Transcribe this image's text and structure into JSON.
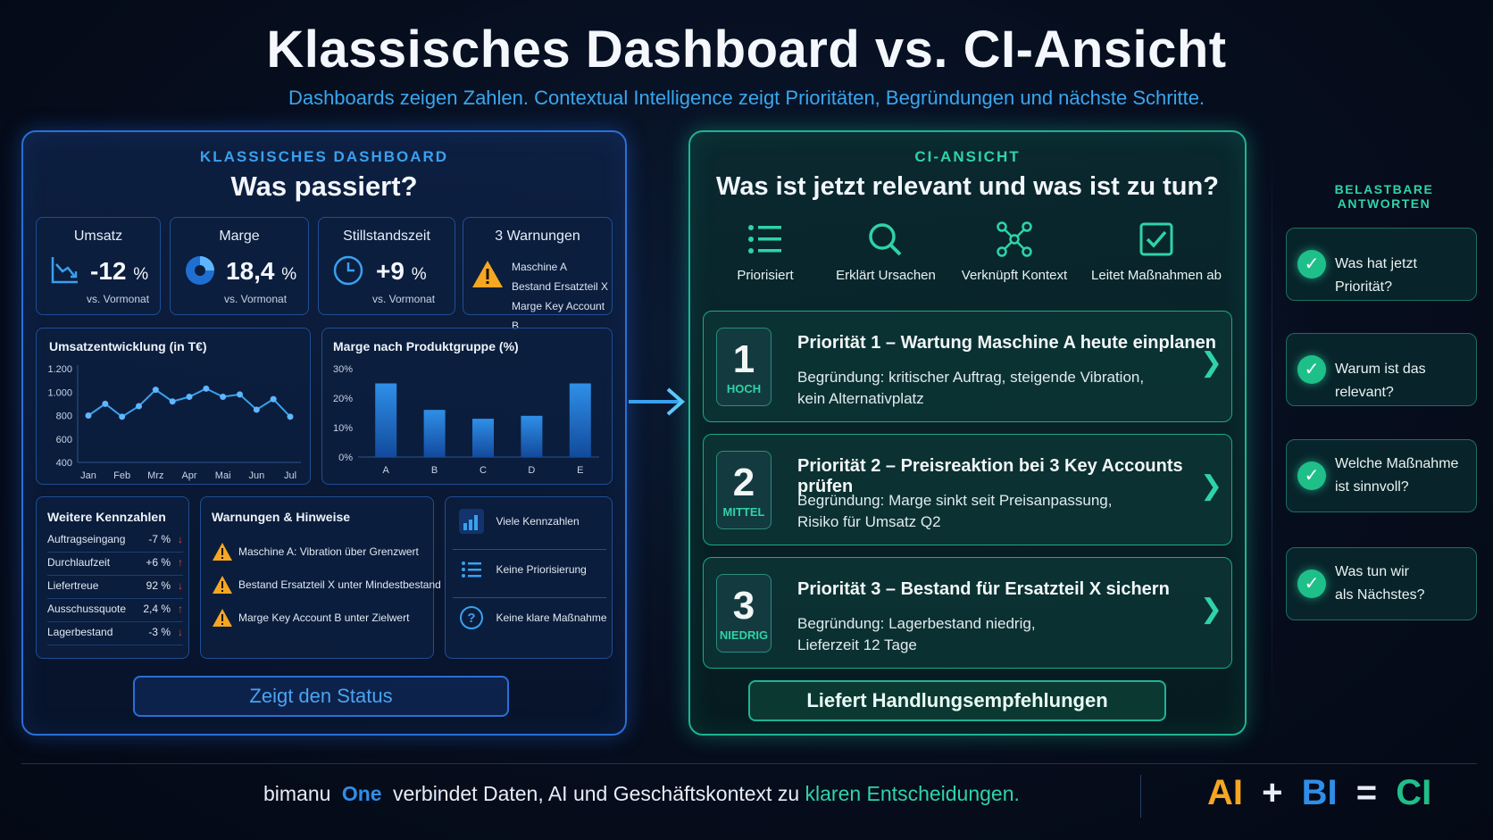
{
  "header": {
    "title": "Klassisches Dashboard vs. CI-Ansicht",
    "subtitle": "Dashboards zeigen Zahlen. Contextual Intelligence zeigt Prioritäten, Begründungen und nächste Schritte."
  },
  "left": {
    "eyebrow": "KLASSISCHES DASHBOARD",
    "heading": "Was passiert?",
    "kpis": [
      {
        "title": "Umsatz",
        "value": "-12",
        "unit": "%",
        "sub": "vs. Vormonat",
        "icon": "trend-down-icon"
      },
      {
        "title": "Marge",
        "value": "18,4",
        "unit": "%",
        "sub": "vs. Vormonat",
        "icon": "pie-icon"
      },
      {
        "title": "Stillstandszeit",
        "value": "+9",
        "unit": "%",
        "sub": "vs. Vormonat",
        "icon": "clock-icon"
      }
    ],
    "warnings_kpi": {
      "title": "3 Warnungen",
      "items": [
        "Maschine A",
        "Bestand Ersatzteil X",
        "Marge Key Account B"
      ]
    },
    "line_chart_title": "Umsatzentwicklung (in T€)",
    "bar_chart_title": "Marge nach Produktgruppe (%)",
    "more_kpis": {
      "title": "Weitere Kennzahlen",
      "rows": [
        {
          "label": "Auftragseingang",
          "value": "-7 %",
          "dir": "down"
        },
        {
          "label": "Durchlaufzeit",
          "value": "+6 %",
          "dir": "up"
        },
        {
          "label": "Liefertreue",
          "value": "92 %",
          "dir": "down"
        },
        {
          "label": "Ausschussquote",
          "value": "2,4 %",
          "dir": "up"
        },
        {
          "label": "Lagerbestand",
          "value": "-3 %",
          "dir": "down"
        }
      ]
    },
    "hints": {
      "title": "Warnungen & Hinweise",
      "items": [
        "Maschine A: Vibration über Grenzwert",
        "Bestand Ersatzteil X unter Mindestbestand",
        "Marge Key Account B unter Zielwert"
      ]
    },
    "issues": [
      "Viele Kennzahlen",
      "Keine Priorisierung",
      "Keine klare Maßnahme"
    ],
    "button": "Zeigt den Status"
  },
  "right": {
    "eyebrow": "CI-ANSICHT",
    "heading": "Was ist jetzt relevant und was ist zu tun?",
    "features": [
      "Priorisiert",
      "Erklärt Ursachen",
      "Verknüpft Kontext",
      "Leitet Maßnahmen ab"
    ],
    "priorities": [
      {
        "num": "1",
        "level": "HOCH",
        "title": "Priorität 1 – Wartung Maschine A heute einplanen",
        "line1": "Begründung: kritischer Auftrag, steigende Vibration,",
        "line2": "kein Alternativplatz"
      },
      {
        "num": "2",
        "level": "MITTEL",
        "title": "Priorität 2 – Preisreaktion bei 3 Key Accounts prüfen",
        "line1": "Begründung: Marge sinkt seit Preisanpassung,",
        "line2": "Risiko für Umsatz Q2"
      },
      {
        "num": "3",
        "level": "NIEDRIG",
        "title": "Priorität 3 – Bestand für Ersatzteil X sichern",
        "line1": "Begründung: Lagerbestand niedrig,",
        "line2": "Lieferzeit 12 Tage"
      }
    ],
    "button": "Liefert Handlungsempfehlungen"
  },
  "answers": {
    "eyebrow": "BELASTBARE ANTWORTEN",
    "items": [
      {
        "line1": "Was hat jetzt Priorität?",
        "line2": ""
      },
      {
        "line1": "Warum ist das relevant?",
        "line2": ""
      },
      {
        "line1": "Welche Maßnahme",
        "line2": "ist sinnvoll?"
      },
      {
        "line1": "Was tun wir",
        "line2": "als Nächstes?"
      }
    ]
  },
  "footer": {
    "pre": "bimanu",
    "brand": "One",
    "mid": "verbindet Daten, AI und Geschäftskontext zu",
    "highlight": "klaren Entscheidungen.",
    "formula": {
      "a": "AI",
      "plus": "+",
      "b": "BI",
      "eq": "=",
      "c": "CI"
    }
  },
  "colors": {
    "blue": "#2f8fe8",
    "green": "#1fbf8a",
    "orange": "#f5a623",
    "red": "#e64545"
  },
  "chart_data": [
    {
      "type": "line",
      "title": "Umsatzentwicklung (in T€)",
      "x": [
        "Jan",
        "",
        "Feb",
        "",
        "Mrz",
        "",
        "Apr",
        "",
        "Mai",
        "",
        "Jun",
        "",
        "Jul"
      ],
      "x_ticks": [
        "Jan",
        "Feb",
        "Mrz",
        "Apr",
        "Mai",
        "Jun",
        "Jul"
      ],
      "values": [
        800,
        900,
        790,
        880,
        1020,
        920,
        960,
        1030,
        960,
        980,
        850,
        940,
        790
      ],
      "y_ticks": [
        "1.200",
        "1.000",
        "800",
        "600",
        "400"
      ],
      "ylim": [
        400,
        1200
      ]
    },
    {
      "type": "bar",
      "title": "Marge nach Produktgruppe (%)",
      "categories": [
        "A",
        "B",
        "C",
        "D",
        "E"
      ],
      "values": [
        25,
        16,
        13,
        14,
        25
      ],
      "y_ticks": [
        "30%",
        "20%",
        "10%",
        "0%"
      ],
      "ylim": [
        0,
        30
      ]
    }
  ]
}
